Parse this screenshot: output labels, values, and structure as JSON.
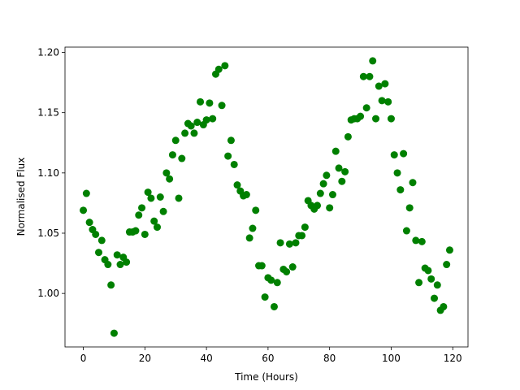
{
  "chart_data": {
    "type": "scatter",
    "xlabel": "Time (Hours)",
    "ylabel": "Normalised Flux",
    "color": "green",
    "x": [
      0,
      1,
      2,
      3,
      4,
      5,
      6,
      7,
      8,
      9,
      10,
      11,
      12,
      13,
      14,
      15,
      16,
      17,
      18,
      19,
      20,
      21,
      22,
      23,
      24,
      25,
      26,
      27,
      28,
      29,
      30,
      31,
      32,
      33,
      34,
      35,
      36,
      37,
      38,
      39,
      40,
      41,
      42,
      43,
      44,
      45,
      46,
      47,
      48,
      49,
      50,
      51,
      52,
      53,
      54,
      55,
      56,
      57,
      58,
      59,
      60,
      61,
      62,
      63,
      64,
      65,
      66,
      67,
      68,
      69,
      70,
      71,
      72,
      73,
      74,
      75,
      76,
      77,
      78,
      79,
      80,
      81,
      82,
      83,
      84,
      85,
      86,
      87,
      88,
      89,
      90,
      91,
      92,
      93,
      94,
      95,
      96,
      97,
      98,
      99,
      100,
      101,
      102,
      103,
      104,
      105,
      106,
      107,
      108,
      109,
      110,
      111,
      112,
      113,
      114,
      115,
      116,
      117,
      118,
      119
    ],
    "values": [
      1.069,
      1.083,
      1.059,
      1.053,
      1.049,
      1.034,
      1.044,
      1.028,
      1.024,
      1.007,
      0.967,
      1.032,
      1.024,
      1.03,
      1.026,
      1.051,
      1.051,
      1.052,
      1.065,
      1.071,
      1.049,
      1.084,
      1.079,
      1.06,
      1.055,
      1.08,
      1.068,
      1.1,
      1.095,
      1.115,
      1.127,
      1.079,
      1.112,
      1.133,
      1.141,
      1.139,
      1.133,
      1.142,
      1.159,
      1.14,
      1.144,
      1.158,
      1.145,
      1.182,
      1.186,
      1.156,
      1.189,
      1.114,
      1.127,
      1.107,
      1.09,
      1.085,
      1.081,
      1.082,
      1.046,
      1.054,
      1.069,
      1.023,
      1.023,
      0.997,
      1.013,
      1.011,
      0.989,
      1.009,
      1.042,
      1.02,
      1.018,
      1.041,
      1.022,
      1.042,
      1.048,
      1.048,
      1.055,
      1.077,
      1.073,
      1.07,
      1.073,
      1.083,
      1.091,
      1.098,
      1.071,
      1.082,
      1.118,
      1.104,
      1.093,
      1.101,
      1.13,
      1.144,
      1.145,
      1.145,
      1.147,
      1.18,
      1.154,
      1.18,
      1.193,
      1.145,
      1.172,
      1.16,
      1.174,
      1.159,
      1.145,
      1.115,
      1.1,
      1.086,
      1.116,
      1.052,
      1.071,
      1.092,
      1.044,
      1.009,
      1.043,
      1.021,
      1.019,
      1.012,
      0.996,
      1.007,
      0.986,
      0.989,
      1.024,
      1.036
    ],
    "xlim": [
      -5.95,
      124.95
    ],
    "ylim": [
      0.9556,
      1.2044
    ],
    "xticks": [
      0,
      20,
      40,
      60,
      80,
      100,
      120
    ],
    "yticks": [
      {
        "value": 1.0,
        "label": "1.00"
      },
      {
        "value": 1.05,
        "label": "1.05"
      },
      {
        "value": 1.1,
        "label": "1.10"
      },
      {
        "value": 1.15,
        "label": "1.15"
      },
      {
        "value": 1.2,
        "label": "1.20"
      }
    ]
  }
}
